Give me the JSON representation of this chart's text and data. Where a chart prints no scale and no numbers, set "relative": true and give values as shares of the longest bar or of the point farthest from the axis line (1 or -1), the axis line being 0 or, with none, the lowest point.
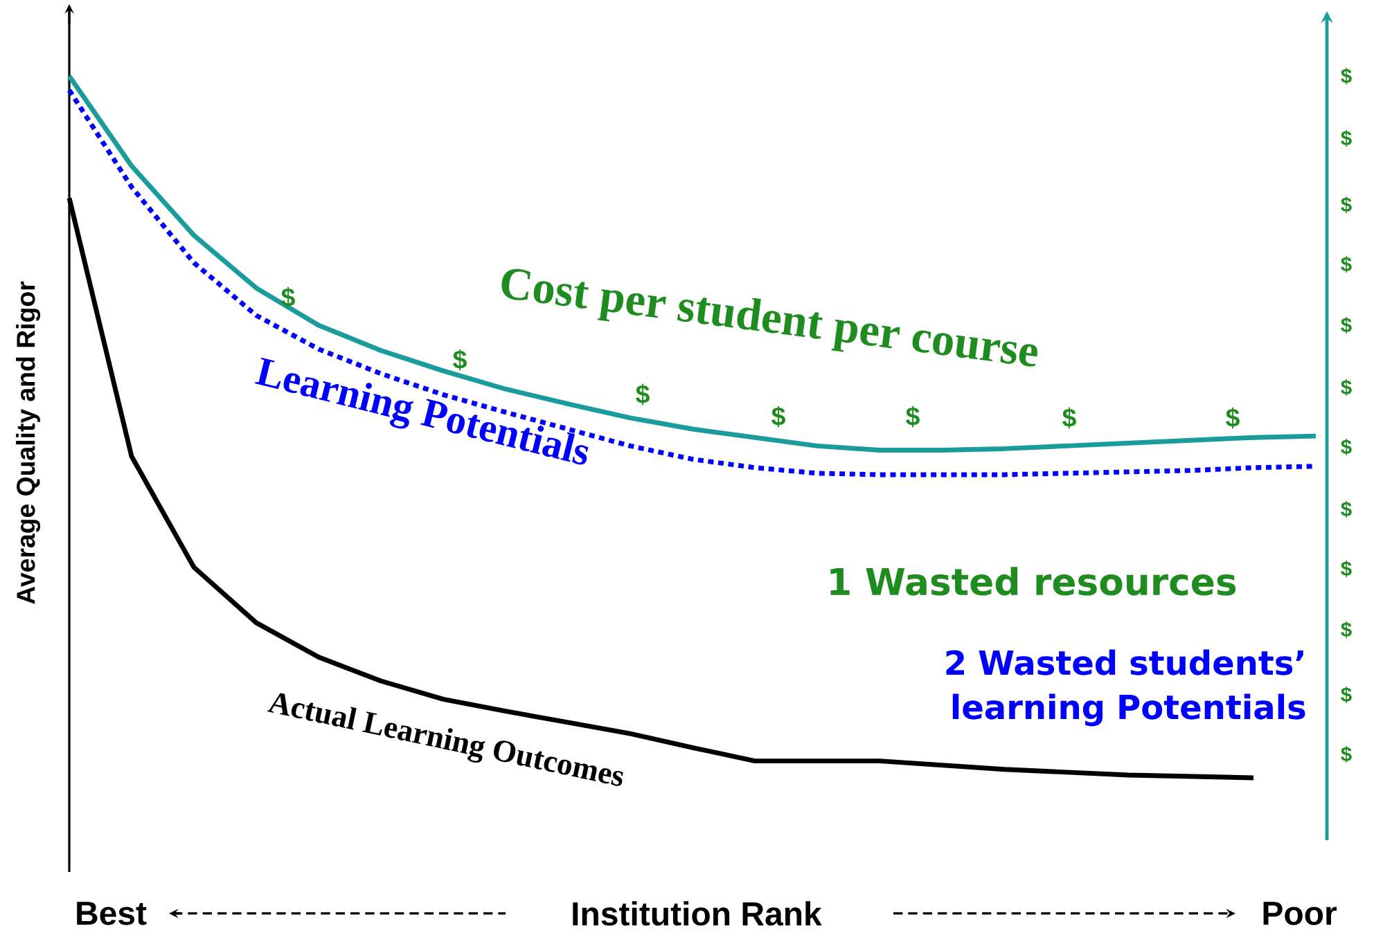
{
  "chart_data": {
    "type": "line",
    "relative": true,
    "ylabel": "Average Quality and Rigor",
    "xlabel": "Institution Rank",
    "marker": "none",
    "categories": [
      null,
      null,
      null,
      null,
      null,
      null,
      null,
      null,
      null,
      null,
      null,
      null,
      null,
      null,
      null,
      null,
      null,
      null,
      null,
      null,
      null
    ],
    "series": [
      {
        "name": "Cost per student per course",
        "color": "#1a9c9c",
        "line_style": "solid",
        "values": [
          1.0,
          0.872,
          0.773,
          0.698,
          0.645,
          0.609,
          0.58,
          0.554,
          0.533,
          0.513,
          0.497,
          0.485,
          0.473,
          0.467,
          0.467,
          0.469,
          0.473,
          0.477,
          0.481,
          0.485,
          0.487
        ]
      },
      {
        "name": "Learning Potentials",
        "color": "#0000ff",
        "line_style": "dotted",
        "values": [
          0.98,
          0.842,
          0.734,
          0.659,
          0.611,
          0.576,
          0.546,
          0.521,
          0.497,
          0.473,
          0.454,
          0.442,
          0.434,
          0.432,
          0.432,
          0.432,
          0.434,
          0.436,
          0.438,
          0.442,
          0.444
        ]
      },
      {
        "name": "Actual Learning Outcomes",
        "color": "#000000",
        "line_style": "solid",
        "values": [
          0.826,
          0.458,
          0.3,
          0.221,
          0.172,
          0.138,
          0.112,
          0.095,
          0.079,
          0.063,
          0.043,
          0.024,
          0.024,
          0.024,
          0.018,
          0.012,
          0.008,
          0.004,
          0.002,
          0.0,
          null
        ]
      }
    ],
    "annotations": [
      "1 Wasted resources",
      "2 Wasted students’ learning Potentials",
      "Best",
      "Poor",
      "$",
      "$",
      "$",
      "$",
      "$",
      "$",
      "$",
      "$",
      "$",
      "$",
      "$",
      "$",
      "$",
      "$",
      "$",
      "$",
      "$",
      "$",
      "$"
    ]
  }
}
